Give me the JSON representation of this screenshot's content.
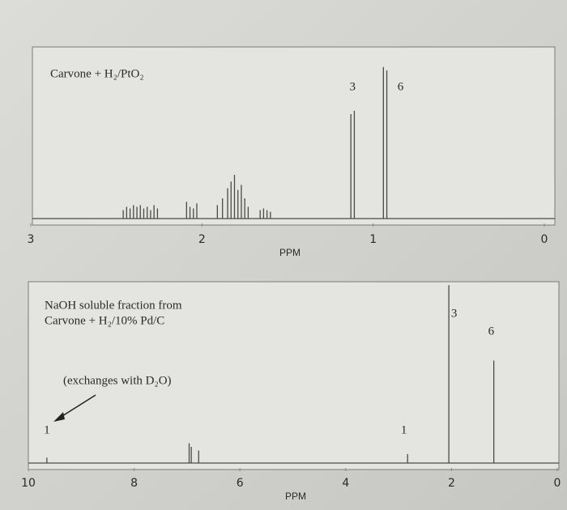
{
  "chart_data": [
    {
      "type": "spectrum",
      "title": [
        "Carvone + H₂/PtO₂"
      ],
      "xlabel": "PPM",
      "xlim": [
        3,
        0
      ],
      "xticks": [
        3,
        2,
        1,
        0
      ],
      "ylim": [
        0,
        100
      ],
      "color": "#4a4a4a",
      "series": [
        {
          "x": [
            2.46,
            2.44,
            2.42,
            2.4,
            2.38,
            2.36,
            2.34,
            2.32,
            2.3,
            2.28,
            2.26,
            2.09,
            2.07,
            2.05,
            2.03,
            1.91,
            1.88,
            1.85,
            1.83,
            1.81,
            1.79,
            1.77,
            1.75,
            1.73,
            1.66,
            1.64,
            1.62,
            1.6,
            1.13,
            1.11,
            0.94,
            0.92
          ],
          "values": [
            5,
            7,
            6,
            8,
            7,
            8,
            6,
            7,
            5,
            8,
            6,
            10,
            7,
            6,
            9,
            8,
            12,
            18,
            22,
            26,
            17,
            20,
            12,
            7,
            5,
            6,
            5,
            4,
            62,
            64,
            90,
            88
          ]
        }
      ],
      "integrations": [
        {
          "x": 1.12,
          "value": 3
        },
        {
          "x": 0.84,
          "value": 6
        }
      ]
    },
    {
      "type": "spectrum",
      "title": [
        "NaOH soluble fraction from",
        "Carvone + H₂/10% Pd/C"
      ],
      "annotation": "(exchanges with D₂O)",
      "xlabel": "PPM",
      "xlim": [
        10,
        0
      ],
      "xticks": [
        10,
        8,
        6,
        4,
        2,
        0
      ],
      "ylim": [
        0,
        100
      ],
      "color": "#4a4a4a",
      "series": [
        {
          "x": [
            9.65,
            6.96,
            6.92,
            6.78,
            2.83,
            2.05,
            1.2
          ],
          "values": [
            3,
            11,
            9,
            7,
            5,
            99,
            57
          ]
        }
      ],
      "integrations": [
        {
          "x": 9.65,
          "value": 1
        },
        {
          "x": 2.9,
          "value": 1
        },
        {
          "x": 1.95,
          "value": 3
        },
        {
          "x": 1.25,
          "value": 6
        }
      ]
    }
  ]
}
